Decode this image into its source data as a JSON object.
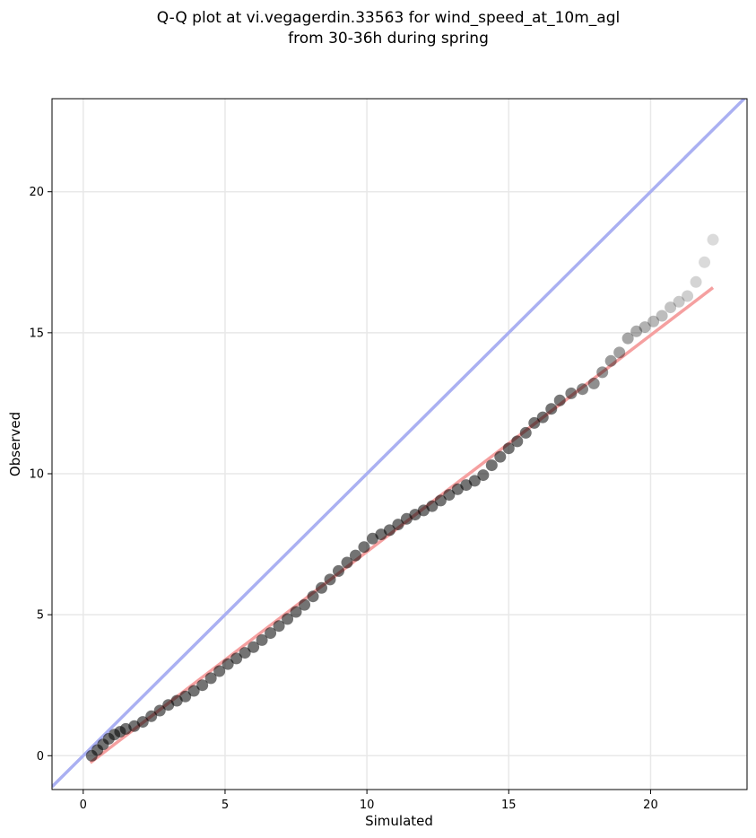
{
  "chart_data": {
    "type": "scatter",
    "title_line1": "Q-Q plot at vi.vegagerdin.33563 for wind_speed_at_10m_agl",
    "title_line2": "from 30-36h during spring",
    "xlabel": "Simulated",
    "ylabel": "Observed",
    "xlim": [
      -1.1,
      23.4
    ],
    "ylim": [
      -1.2,
      23.3
    ],
    "x_ticks": [
      0,
      5,
      10,
      15,
      20
    ],
    "y_ticks": [
      0,
      5,
      10,
      15,
      20
    ],
    "grid": true,
    "identity_line": {
      "color": "#aab0f2",
      "from": [
        -1.1,
        -1.1
      ],
      "to": [
        23.4,
        23.4
      ]
    },
    "fit_line": {
      "color": "#f5a0a0",
      "from": [
        0.25,
        -0.25
      ],
      "to": [
        22.2,
        16.6
      ]
    },
    "point_color": "#000000",
    "quantiles": [
      [
        0.3,
        0.0
      ],
      [
        0.5,
        0.2
      ],
      [
        0.7,
        0.4
      ],
      [
        0.9,
        0.6
      ],
      [
        1.1,
        0.75
      ],
      [
        1.3,
        0.85
      ],
      [
        1.5,
        0.95
      ],
      [
        1.8,
        1.05
      ],
      [
        2.1,
        1.2
      ],
      [
        2.4,
        1.4
      ],
      [
        2.7,
        1.6
      ],
      [
        3.0,
        1.8
      ],
      [
        3.3,
        1.95
      ],
      [
        3.6,
        2.1
      ],
      [
        3.9,
        2.3
      ],
      [
        4.2,
        2.5
      ],
      [
        4.5,
        2.75
      ],
      [
        4.8,
        3.0
      ],
      [
        5.1,
        3.25
      ],
      [
        5.4,
        3.45
      ],
      [
        5.7,
        3.65
      ],
      [
        6.0,
        3.85
      ],
      [
        6.3,
        4.1
      ],
      [
        6.6,
        4.35
      ],
      [
        6.9,
        4.6
      ],
      [
        7.2,
        4.85
      ],
      [
        7.5,
        5.1
      ],
      [
        7.8,
        5.35
      ],
      [
        8.1,
        5.65
      ],
      [
        8.4,
        5.95
      ],
      [
        8.7,
        6.25
      ],
      [
        9.0,
        6.55
      ],
      [
        9.3,
        6.85
      ],
      [
        9.6,
        7.1
      ],
      [
        9.9,
        7.4
      ],
      [
        10.2,
        7.7
      ],
      [
        10.5,
        7.85
      ],
      [
        10.8,
        8.0
      ],
      [
        11.1,
        8.2
      ],
      [
        11.4,
        8.4
      ],
      [
        11.7,
        8.55
      ],
      [
        12.0,
        8.7
      ],
      [
        12.3,
        8.85
      ],
      [
        12.6,
        9.05
      ],
      [
        12.9,
        9.25
      ],
      [
        13.2,
        9.45
      ],
      [
        13.5,
        9.6
      ],
      [
        13.8,
        9.75
      ],
      [
        14.1,
        9.95
      ],
      [
        14.4,
        10.3
      ],
      [
        14.7,
        10.6
      ],
      [
        15.0,
        10.9
      ],
      [
        15.3,
        11.15
      ],
      [
        15.6,
        11.45
      ],
      [
        15.9,
        11.8
      ],
      [
        16.2,
        12.0
      ],
      [
        16.5,
        12.3
      ],
      [
        16.8,
        12.6
      ],
      [
        17.2,
        12.85
      ],
      [
        17.6,
        13.0
      ],
      [
        18.0,
        13.2
      ],
      [
        18.3,
        13.6
      ],
      [
        18.6,
        14.0
      ],
      [
        18.9,
        14.3
      ],
      [
        19.2,
        14.8
      ],
      [
        19.5,
        15.05
      ],
      [
        19.8,
        15.2
      ],
      [
        20.1,
        15.4
      ],
      [
        20.4,
        15.6
      ],
      [
        20.7,
        15.9
      ],
      [
        21.0,
        16.1
      ],
      [
        21.3,
        16.3
      ],
      [
        21.6,
        16.8
      ],
      [
        21.9,
        17.5
      ],
      [
        22.2,
        18.3
      ]
    ]
  }
}
